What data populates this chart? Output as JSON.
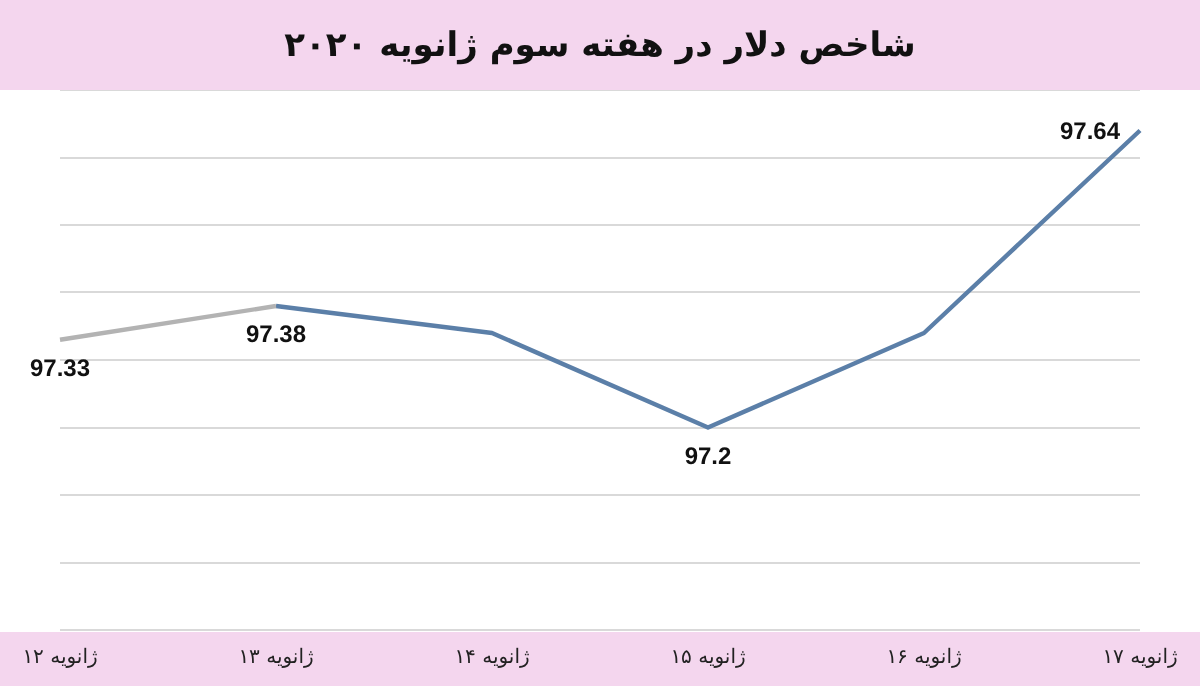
{
  "chart_data": {
    "type": "line",
    "title": "شاخص دلار در هفته سوم ژانویه ۲۰۲۰",
    "categories": [
      "۱۲ ژانویه",
      "۱۳ ژانویه",
      "۱۴ ژانویه",
      "۱۵ ژانویه",
      "۱۶ ژانویه",
      "۱۷ ژانویه"
    ],
    "series": [
      {
        "color": "#b3b3b3",
        "values": [
          97.33,
          97.38,
          null,
          null,
          null,
          null
        ],
        "value_labels": [
          "97.33",
          null,
          null,
          null,
          null,
          null
        ]
      },
      {
        "color": "#5b7fa8",
        "values": [
          null,
          97.38,
          97.34,
          97.2,
          97.34,
          97.64
        ],
        "value_labels": [
          null,
          "97.38",
          null,
          "97.2",
          null,
          "97.64"
        ]
      }
    ],
    "ylim": [
      96.9,
      97.7
    ],
    "yticks": [
      {
        "value": 96.9,
        "label": null
      },
      {
        "value": 97.0,
        "label": null
      },
      {
        "value": 97.1,
        "label": null
      },
      {
        "value": 97.2,
        "label": null
      },
      {
        "value": 97.3,
        "label": null
      },
      {
        "value": 97.4,
        "label": null
      },
      {
        "value": 97.5,
        "label": null
      },
      {
        "value": 97.6,
        "label": null
      },
      {
        "value": 97.7,
        "label": null
      }
    ],
    "grid": "y",
    "legend": false,
    "tick_labels": "x",
    "marker": "none",
    "line_style": "solid"
  }
}
